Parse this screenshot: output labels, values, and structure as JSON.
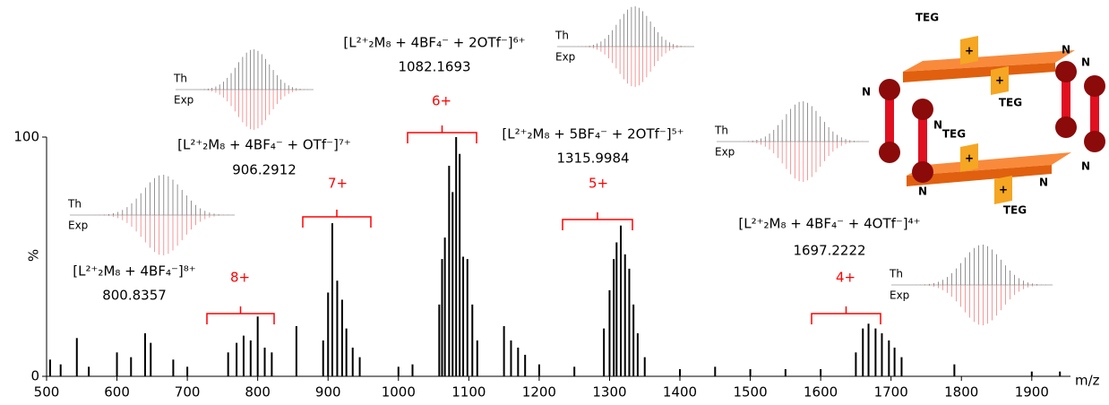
{
  "chart_data": {
    "type": "stem",
    "x": [
      505,
      520,
      543,
      560,
      600,
      620,
      640,
      648,
      680,
      700,
      758,
      770,
      780,
      790,
      800,
      810,
      820,
      855,
      893,
      900,
      906,
      913,
      920,
      926,
      935,
      945,
      1000,
      1020,
      1058,
      1062,
      1066,
      1072,
      1077,
      1082,
      1087,
      1092,
      1098,
      1105,
      1112,
      1150,
      1160,
      1170,
      1180,
      1200,
      1250,
      1292,
      1300,
      1306,
      1310,
      1316,
      1322,
      1328,
      1334,
      1340,
      1350,
      1400,
      1450,
      1500,
      1550,
      1600,
      1650,
      1660,
      1668,
      1678,
      1687,
      1697,
      1705,
      1715,
      1790,
      1900,
      1940
    ],
    "values": [
      7,
      5,
      16,
      4,
      10,
      8,
      18,
      14,
      7,
      4,
      10,
      14,
      17,
      15,
      25,
      12,
      10,
      21,
      15,
      35,
      64,
      40,
      32,
      20,
      12,
      8,
      4,
      5,
      30,
      49,
      58,
      88,
      77,
      100,
      93,
      50,
      49,
      30,
      15,
      21,
      15,
      12,
      9,
      5,
      4,
      20,
      36,
      49,
      56,
      63,
      51,
      45,
      30,
      18,
      8,
      3,
      4,
      3,
      3,
      3,
      10,
      20,
      22,
      20,
      18,
      15,
      12,
      8,
      5,
      2,
      2
    ],
    "color": "#000000",
    "xlim": [
      500,
      1955
    ],
    "ylim": [
      0,
      100
    ],
    "xticks": [
      500,
      600,
      700,
      800,
      900,
      1000,
      1100,
      1200,
      1300,
      1400,
      1500,
      1600,
      1700,
      1800,
      1900
    ],
    "yticks": [
      0,
      100
    ],
    "xlabel": "m/z",
    "ylabel": "%",
    "annotation_color": "#ff0000",
    "annotations": [
      {
        "formula": "[L²⁺₂M₈ + 4BF₄⁻]⁸⁺",
        "mass": "800.8357",
        "charge": "8+",
        "theory": "Th",
        "experiment": "Exp"
      },
      {
        "formula": "[L²⁺₂M₈ + 4BF₄⁻ + OTf⁻]⁷⁺",
        "mass": "906.2912",
        "charge": "7+",
        "theory": "Th",
        "experiment": "Exp"
      },
      {
        "formula": "[L²⁺₂M₈ + 4BF₄⁻ + 2OTf⁻]⁶⁺",
        "mass": "1082.1693",
        "charge": "6+",
        "theory": "Th",
        "experiment": "Exp"
      },
      {
        "formula": "[L²⁺₂M₈ + 5BF₄⁻ + 2OTf⁻]⁵⁺",
        "mass": "1315.9984",
        "charge": "5+",
        "theory": "Th",
        "experiment": "Exp"
      },
      {
        "formula": "[L²⁺₂M₈ + 4BF₄⁻ + 4OTf⁻]⁴⁺",
        "mass": "1697.2222",
        "charge": "4+",
        "theory": "Th",
        "experiment": "Exp"
      }
    ]
  },
  "structure": {
    "labels": [
      "TEG",
      "TEG",
      "TEG",
      "TEG",
      "N",
      "N",
      "N",
      "N",
      "N",
      "N",
      "N",
      "+",
      "+",
      "+",
      "+"
    ]
  }
}
